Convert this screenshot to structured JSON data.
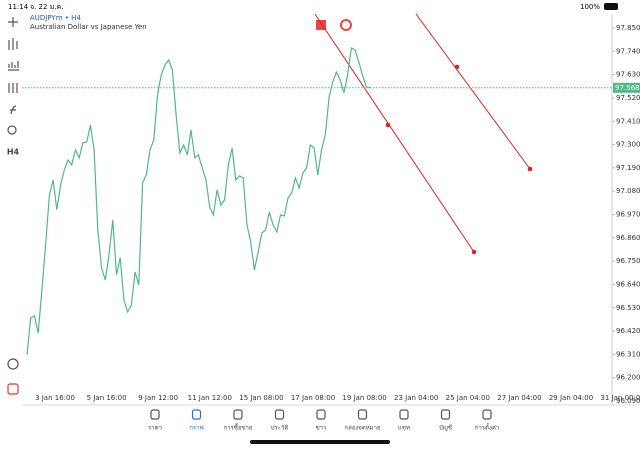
{
  "status_bar": {
    "time": "11:14",
    "date": "จ. 22 ม.ค.",
    "battery": "100%"
  },
  "sidebar": {
    "timeframe": "H4"
  },
  "chart_data": {
    "type": "line",
    "title": "AUDJPYm • H4",
    "subtitle": "Australian Dollar vs Japanese Yen",
    "xticks": [
      "3 Jan 16:00",
      "5 Jan 16:00",
      "9 Jan 12:00",
      "11 Jan 12:00",
      "15 Jan 08:00",
      "17 Jan 08:00",
      "19 Jan 08:00",
      "23 Jan 04:00",
      "25 Jan 04:00",
      "27 Jan 04:00",
      "29 Jan 04:00",
      "31 Jan 00:00"
    ],
    "color": "#4fb98a",
    "values": [
      96.308,
      96.482,
      96.491,
      96.411,
      96.614,
      96.826,
      97.062,
      97.133,
      96.992,
      97.109,
      97.18,
      97.227,
      97.204,
      97.275,
      97.237,
      97.308,
      97.312,
      97.392,
      97.275,
      96.897,
      96.718,
      96.661,
      96.779,
      96.944,
      96.685,
      96.765,
      96.567,
      96.51,
      96.543,
      96.699,
      96.638,
      97.119,
      97.157,
      97.275,
      97.322,
      97.534,
      97.628,
      97.675,
      97.699,
      97.652,
      97.44,
      97.26,
      97.298,
      97.251,
      97.369,
      97.237,
      97.251,
      97.19,
      97.133,
      97.006,
      96.968,
      97.086,
      97.015,
      97.039,
      97.204,
      97.284,
      97.133,
      97.152,
      97.142,
      96.921,
      96.841,
      96.708,
      96.793,
      96.883,
      96.897,
      96.982,
      96.921,
      96.888,
      96.968,
      96.963,
      97.048,
      97.072,
      97.142,
      97.095,
      97.166,
      97.19,
      97.298,
      97.284,
      97.157,
      97.275,
      97.345,
      97.52,
      97.595,
      97.642,
      97.605,
      97.543,
      97.628,
      97.756,
      97.746,
      97.69,
      97.628,
      97.572,
      97.568
    ],
    "last_price": 97.568,
    "ylim": [
      96.09,
      97.85
    ],
    "yticks": [
      {
        "value": 97.85,
        "label": "97.850"
      },
      {
        "value": 97.74,
        "label": "97.740"
      },
      {
        "value": 97.63,
        "label": "97.630"
      },
      {
        "value": 97.52,
        "label": "97.520"
      },
      {
        "value": 97.41,
        "label": "97.410"
      },
      {
        "value": 97.3,
        "label": "97.300"
      },
      {
        "value": 97.19,
        "label": "97.190"
      },
      {
        "value": 97.08,
        "label": "97.080"
      },
      {
        "value": 96.97,
        "label": "96.970"
      },
      {
        "value": 96.86,
        "label": "96.860"
      },
      {
        "value": 96.75,
        "label": "96.750"
      },
      {
        "value": 96.64,
        "label": "96.640"
      },
      {
        "value": 96.53,
        "label": "96.530"
      },
      {
        "value": 96.42,
        "label": "96.420"
      },
      {
        "value": 96.31,
        "label": "96.310"
      },
      {
        "value": 96.2,
        "label": "96.200"
      },
      {
        "value": 96.09,
        "label": "96.090"
      }
    ]
  },
  "tabs": [
    "ราคา",
    "กราฟ",
    "การซื้อขาย",
    "ประวัติ",
    "ข่าว",
    "กล่องจดหมาย",
    "แชท",
    "บัญชี",
    "การตั้งค่า"
  ]
}
